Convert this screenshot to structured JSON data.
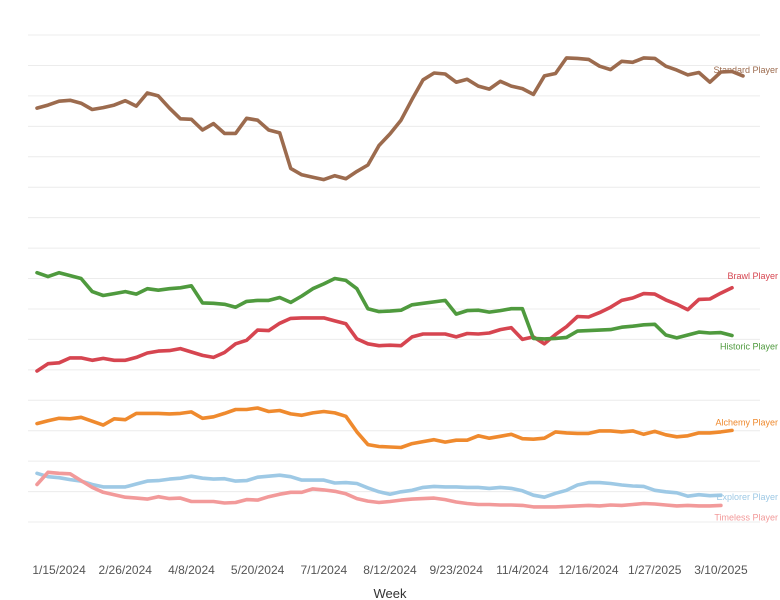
{
  "chart_data": {
    "type": "line",
    "title": "",
    "xlabel": "Week",
    "ylabel": "",
    "ylim": [
      0,
      100
    ],
    "grid": true,
    "x_ticks": [
      "1/15/2024",
      "2/26/2024",
      "4/8/2024",
      "5/20/2024",
      "7/1/2024",
      "8/12/2024",
      "9/23/2024",
      "11/4/2024",
      "12/16/2024",
      "1/27/2025",
      "3/10/2025"
    ],
    "x_tick_indices": [
      2,
      8,
      14,
      20,
      26,
      32,
      38,
      44,
      50,
      56,
      62
    ],
    "series": [
      {
        "name": "Standard Player",
        "color": "#9C6B4E",
        "values": [
          85,
          85.6,
          86.4,
          86.6,
          86,
          84.7,
          85.1,
          85.6,
          86.5,
          85.4,
          88.1,
          87.5,
          85,
          82.8,
          82.7,
          80.5,
          81.8,
          79.8,
          79.8,
          82.9,
          82.5,
          80.5,
          79.9,
          72.6,
          71.3,
          70.8,
          70.3,
          71.1,
          70.5,
          72,
          73.3,
          77.3,
          79.7,
          82.5,
          86.8,
          90.8,
          92.2,
          92,
          90.3,
          90.9,
          89.5,
          88.9,
          90.5,
          89.5,
          89,
          87.8,
          91.6,
          92.1,
          95.3,
          95.2,
          95,
          93.6,
          92.9,
          94.6,
          94.4,
          95.3,
          95.2,
          93.6,
          92.8,
          91.8,
          92.3,
          90.3,
          92.4,
          92.5,
          91.6
        ]
      },
      {
        "name": "Brawl Player",
        "color": "#D64550",
        "values": [
          31,
          32.5,
          32.7,
          33.7,
          33.7,
          33.2,
          33.6,
          33.2,
          33.2,
          33.8,
          34.7,
          35.1,
          35.2,
          35.6,
          34.9,
          34.2,
          33.8,
          34.8,
          36.6,
          37.3,
          39.4,
          39.3,
          40.8,
          41.8,
          41.9,
          41.9,
          41.9,
          41.3,
          40.7,
          37.6,
          36.6,
          36.2,
          36.3,
          36.2,
          38,
          38.6,
          38.6,
          38.6,
          38,
          38.7,
          38.6,
          38.8,
          39.5,
          39.9,
          37.5,
          38,
          36.6,
          38.5,
          40.1,
          42.2,
          42.1,
          43,
          44.1,
          45.5,
          46,
          46.9,
          46.8,
          45.6,
          44.7,
          43.6,
          45.7,
          45.8,
          47,
          48.1
        ]
      },
      {
        "name": "Historic Player",
        "color": "#4F9A3E",
        "values": [
          51.2,
          50.4,
          51.2,
          50.6,
          50,
          47.3,
          46.5,
          46.9,
          47.3,
          46.8,
          47.9,
          47.6,
          47.9,
          48.1,
          48.5,
          45,
          44.9,
          44.7,
          44.1,
          45.3,
          45.5,
          45.5,
          46.1,
          45.1,
          46.4,
          47.9,
          48.9,
          50,
          49.6,
          47.9,
          43.8,
          43.2,
          43.3,
          43.5,
          44.6,
          44.9,
          45.2,
          45.5,
          42.7,
          43.4,
          43.5,
          43.1,
          43.4,
          43.8,
          43.8,
          37.7,
          37.6,
          37.7,
          37.9,
          39.2,
          39.3,
          39.4,
          39.5,
          40,
          40.2,
          40.5,
          40.6,
          38.4,
          37.8,
          38.4,
          39,
          38.8,
          38.9,
          38.3
        ]
      },
      {
        "name": "Alchemy Player",
        "color": "#EF8A2E",
        "values": [
          20.2,
          20.8,
          21.3,
          21.2,
          21.5,
          20.7,
          19.9,
          21.2,
          21,
          22.3,
          22.3,
          22.3,
          22.2,
          22.3,
          22.6,
          21.3,
          21.6,
          22.3,
          23.1,
          23.1,
          23.4,
          22.7,
          22.9,
          22.2,
          21.9,
          22.4,
          22.7,
          22.4,
          21.7,
          18.5,
          15.9,
          15.5,
          15.4,
          15.3,
          16.1,
          16.5,
          16.9,
          16.4,
          16.8,
          16.8,
          17.7,
          17.2,
          17.6,
          18,
          17.1,
          17,
          17.2,
          18.5,
          18.3,
          18.2,
          18.2,
          18.7,
          18.7,
          18.5,
          18.7,
          18,
          18.6,
          17.9,
          17.5,
          17.7,
          18.3,
          18.3,
          18.5,
          18.8
        ]
      },
      {
        "name": "Explorer Player",
        "color": "#9EC9E5",
        "values": [
          10,
          9.3,
          9.1,
          8.7,
          8.4,
          7.7,
          7.2,
          7.2,
          7.2,
          7.8,
          8.4,
          8.5,
          8.8,
          9,
          9.4,
          9,
          8.8,
          8.9,
          8.4,
          8.5,
          9.2,
          9.4,
          9.6,
          9.3,
          8.6,
          8.6,
          8.6,
          8,
          8.1,
          7.9,
          7,
          6.2,
          5.7,
          6.2,
          6.5,
          7.1,
          7.3,
          7.2,
          7.2,
          7.1,
          7.1,
          6.9,
          7.1,
          6.9,
          6.4,
          5.5,
          5.1,
          5.9,
          6.5,
          7.6,
          8.1,
          8.1,
          7.9,
          7.6,
          7.4,
          7.3,
          6.5,
          6.2,
          6,
          5.3,
          5.6,
          5.4,
          5.5
        ]
      },
      {
        "name": "Timeless Player",
        "color": "#F29A9A",
        "values": [
          7.7,
          10.2,
          10,
          9.9,
          8.5,
          7.1,
          6.1,
          5.6,
          5.1,
          4.9,
          4.7,
          5.2,
          4.8,
          4.9,
          4.2,
          4.2,
          4.2,
          3.9,
          4,
          4.6,
          4.5,
          5.2,
          5.7,
          6.1,
          6.1,
          6.8,
          6.6,
          6.3,
          5.8,
          4.8,
          4.3,
          4,
          4.2,
          4.5,
          4.7,
          4.8,
          4.9,
          4.6,
          4.1,
          3.8,
          3.6,
          3.6,
          3.5,
          3.5,
          3.4,
          3.1,
          3.1,
          3.1,
          3.2,
          3.3,
          3.4,
          3.3,
          3.5,
          3.4,
          3.6,
          3.8,
          3.7,
          3.5,
          3.3,
          3.4,
          3.3,
          3.3,
          3.4
        ]
      }
    ]
  }
}
